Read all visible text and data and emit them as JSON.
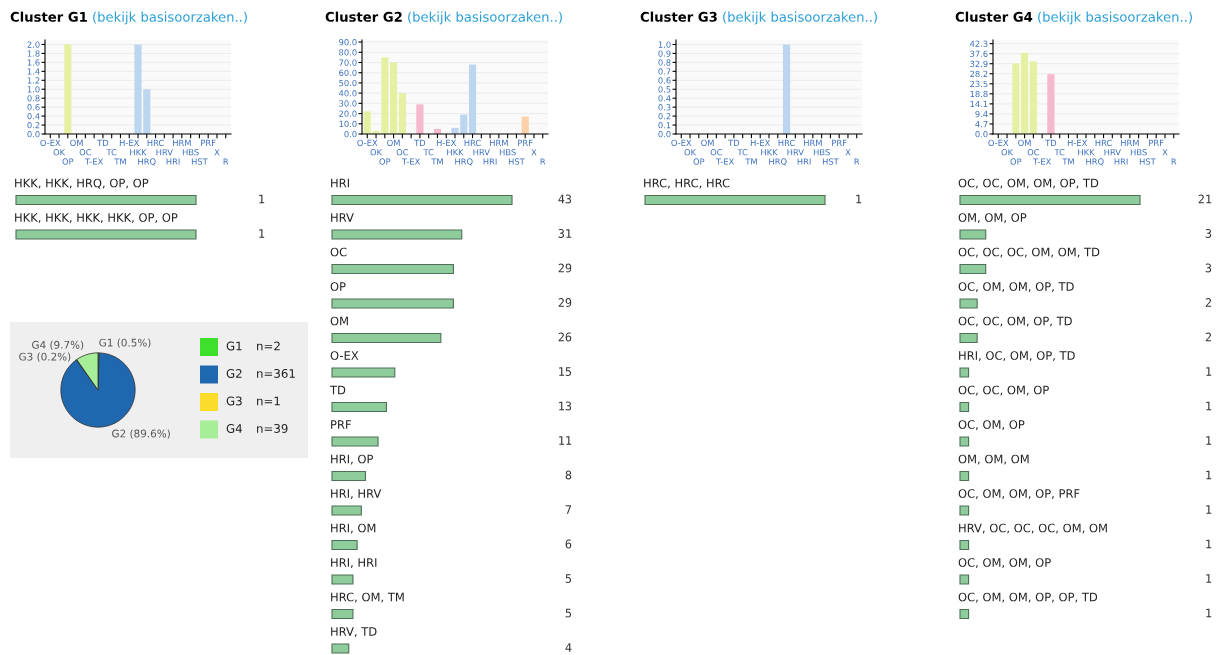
{
  "chart_data": [
    {
      "type": "bar",
      "title": "Cluster G1",
      "subtitle": "(bekijk basisoorzaken..)",
      "categories": [
        "O-EX",
        "OK",
        "OP",
        "OM",
        "OC",
        "T-EX",
        "TD",
        "TC",
        "TM",
        "H-EX",
        "HKK",
        "HRQ",
        "HRC",
        "HRV",
        "HRI",
        "HRM",
        "HBS",
        "HST",
        "PRF",
        "X",
        "R"
      ],
      "values": [
        0,
        0,
        2,
        0,
        0,
        0,
        0,
        0,
        0,
        0,
        2,
        1,
        0,
        0,
        0,
        0,
        0,
        0,
        0,
        0,
        0
      ],
      "colors": [
        "#e6f0a3",
        "#e6f0a3",
        "#e6f0a3",
        "#e6f0a3",
        "#e6f0a3",
        "#f5b8cc",
        "#f5b8cc",
        "#f5b8cc",
        "#f5b8cc",
        "#bdd6ef",
        "#bdd6ef",
        "#bdd6ef",
        "#bdd6ef",
        "#bdd6ef",
        "#bdd6ef",
        "#bdd6ef",
        "#bdd6ef",
        "#bdd6ef",
        "#fbd1a9",
        "#d9d9d9",
        "#d9d9d9"
      ],
      "ylim": [
        0,
        2.1
      ],
      "yticks": [
        {
          "value": 0,
          "label": "0.0"
        },
        {
          "value": 0.2,
          "label": "0.2"
        },
        {
          "value": 0.4,
          "label": "0.4"
        },
        {
          "value": 0.6,
          "label": "0.6"
        },
        {
          "value": 0.8,
          "label": "0.8"
        },
        {
          "value": 1.0,
          "label": "1.0"
        },
        {
          "value": 1.2,
          "label": "1.2"
        },
        {
          "value": 1.4,
          "label": "1.4"
        },
        {
          "value": 1.6,
          "label": "1.6"
        },
        {
          "value": 1.8,
          "label": "1.8"
        },
        {
          "value": 2.0,
          "label": "2.0"
        }
      ],
      "grid": "y"
    },
    {
      "type": "bar",
      "orientation": "horizontal",
      "categories": [
        "HKK, HKK, HRQ, OP, OP",
        "HKK, HKK, HKK, HKK, OP, OP"
      ],
      "values": [
        1,
        1
      ],
      "color": "#8fcc9c",
      "data_labels": true
    },
    {
      "type": "pie",
      "categories": [
        "G1",
        "G2",
        "G3",
        "G4"
      ],
      "values": [
        0.5,
        89.6,
        0.2,
        9.7
      ],
      "colors": [
        "#3ee02b",
        "#1f68b0",
        "#fbdc2a",
        "#a6ee98"
      ],
      "value_labels": [
        "G1 (0.5%)",
        "G2 (89.6%)",
        "G3 (0.2%)",
        "G4 (9.7%)"
      ],
      "annotations": [
        "n=2",
        "n=361",
        "n=1",
        "n=39"
      ],
      "legend": "right"
    },
    {
      "type": "bar",
      "title": "Cluster G2",
      "subtitle": "(bekijk basisoorzaken..)",
      "categories": [
        "O-EX",
        "OK",
        "OP",
        "OM",
        "OC",
        "T-EX",
        "TD",
        "TC",
        "TM",
        "H-EX",
        "HKK",
        "HRQ",
        "HRC",
        "HRV",
        "HRI",
        "HRM",
        "HBS",
        "HST",
        "PRF",
        "X",
        "R"
      ],
      "values": [
        22,
        3,
        75,
        70,
        40,
        0,
        29,
        0,
        5,
        0,
        6,
        19,
        68,
        0,
        0,
        null,
        0,
        0,
        17,
        null,
        null
      ],
      "colors": [
        "#e6f0a3",
        "#e6f0a3",
        "#e6f0a3",
        "#e6f0a3",
        "#e6f0a3",
        "#f5b8cc",
        "#f5b8cc",
        "#f5b8cc",
        "#f5b8cc",
        "#bdd6ef",
        "#bdd6ef",
        "#bdd6ef",
        "#bdd6ef",
        "#bdd6ef",
        "#bdd6ef",
        "#bdd6ef",
        "#bdd6ef",
        "#bdd6ef",
        "#fbd1a9",
        "#d9d9d9",
        "#d9d9d9"
      ],
      "ylim": [
        0,
        92
      ],
      "yticks": [
        {
          "value": 0,
          "label": "0.0"
        },
        {
          "value": 10,
          "label": "10.0"
        },
        {
          "value": 20,
          "label": "20.0"
        },
        {
          "value": 30,
          "label": "30.0"
        },
        {
          "value": 40,
          "label": "40.0"
        },
        {
          "value": 50,
          "label": "50.0"
        },
        {
          "value": 60,
          "label": "60.0"
        },
        {
          "value": 70,
          "label": "70.0"
        },
        {
          "value": 80,
          "label": "80.0"
        },
        {
          "value": 90,
          "label": "90.0"
        }
      ],
      "grid": "y"
    },
    {
      "type": "bar",
      "orientation": "horizontal",
      "categories": [
        "HRI",
        "HRV",
        "OC",
        "OP",
        "OM",
        "O-EX",
        "TD",
        "PRF",
        "HRI, OP",
        "HRI, HRV",
        "HRI, OM",
        "HRI, HRI",
        "HRC, OM, TM",
        "HRV, TD"
      ],
      "values": [
        43,
        31,
        29,
        29,
        26,
        15,
        13,
        11,
        8,
        7,
        6,
        5,
        5,
        4
      ],
      "color": "#8fcc9c",
      "data_labels": true
    },
    {
      "type": "bar",
      "title": "Cluster G3",
      "subtitle": "(bekijk basisoorzaken..)",
      "categories": [
        "O-EX",
        "OK",
        "OP",
        "OM",
        "OC",
        "T-EX",
        "TD",
        "TC",
        "TM",
        "H-EX",
        "HKK",
        "HRQ",
        "HRC",
        "HRV",
        "HRI",
        "HRM",
        "HBS",
        "HST",
        "PRF",
        "X",
        "R"
      ],
      "values": [
        0,
        0,
        0,
        0,
        0,
        0,
        0,
        0,
        0,
        0,
        0,
        0,
        1,
        0,
        0,
        0,
        0,
        0,
        0,
        0,
        0
      ],
      "colors": [
        "#e6f0a3",
        "#e6f0a3",
        "#e6f0a3",
        "#e6f0a3",
        "#e6f0a3",
        "#f5b8cc",
        "#f5b8cc",
        "#f5b8cc",
        "#f5b8cc",
        "#bdd6ef",
        "#bdd6ef",
        "#bdd6ef",
        "#bdd6ef",
        "#bdd6ef",
        "#bdd6ef",
        "#bdd6ef",
        "#bdd6ef",
        "#bdd6ef",
        "#fbd1a9",
        "#d9d9d9",
        "#d9d9d9"
      ],
      "ylim": [
        0,
        1.05
      ],
      "yticks": [
        {
          "value": 0,
          "label": "0.0"
        },
        {
          "value": 0.1,
          "label": "0.1"
        },
        {
          "value": 0.2,
          "label": "0.2"
        },
        {
          "value": 0.3,
          "label": "0.3"
        },
        {
          "value": 0.4,
          "label": "0.4"
        },
        {
          "value": 0.5,
          "label": "0.5"
        },
        {
          "value": 0.6,
          "label": "0.6"
        },
        {
          "value": 0.7,
          "label": "0.7"
        },
        {
          "value": 0.8,
          "label": "0.8"
        },
        {
          "value": 0.9,
          "label": "0.9"
        },
        {
          "value": 1.0,
          "label": "1.0"
        }
      ],
      "grid": "y"
    },
    {
      "type": "bar",
      "orientation": "horizontal",
      "categories": [
        "HRC, HRC, HRC"
      ],
      "values": [
        1
      ],
      "color": "#8fcc9c",
      "data_labels": true
    },
    {
      "type": "bar",
      "title": "Cluster G4",
      "subtitle": "(bekijk basisoorzaken..)",
      "categories": [
        "O-EX",
        "OK",
        "OP",
        "OM",
        "OC",
        "T-EX",
        "TD",
        "TC",
        "TM",
        "H-EX",
        "HKK",
        "HRQ",
        "HRC",
        "HRV",
        "HRI",
        "HRM",
        "HBS",
        "HST",
        "PRF",
        "X",
        "R"
      ],
      "values": [
        0,
        0,
        33,
        38,
        34,
        0,
        28,
        0,
        0,
        0,
        0,
        0,
        0,
        0,
        0,
        0,
        0,
        0,
        0,
        0,
        0
      ],
      "colors": [
        "#e6f0a3",
        "#e6f0a3",
        "#e6f0a3",
        "#e6f0a3",
        "#e6f0a3",
        "#f5b8cc",
        "#f5b8cc",
        "#f5b8cc",
        "#f5b8cc",
        "#bdd6ef",
        "#bdd6ef",
        "#bdd6ef",
        "#bdd6ef",
        "#bdd6ef",
        "#bdd6ef",
        "#bdd6ef",
        "#bdd6ef",
        "#bdd6ef",
        "#fbd1a9",
        "#d9d9d9",
        "#d9d9d9"
      ],
      "ylim": [
        0,
        44
      ],
      "yticks": [
        {
          "value": 0,
          "label": "0.0"
        },
        4.7,
        9.4,
        14.1,
        18.8,
        23.5,
        28.2,
        32.9,
        37.6,
        42.3
      ],
      "grid": "y"
    },
    {
      "type": "bar",
      "orientation": "horizontal",
      "categories": [
        "OC, OC, OM, OM, OP, TD",
        "OM, OM, OP",
        "OC, OC, OC, OM, OM, TD",
        "OC, OM, OM, OP, TD",
        "OC, OC, OM, OP, TD",
        "HRI, OC, OM, OP, TD",
        "OC, OC, OM, OP",
        "OC, OM, OP",
        "OM, OM, OM",
        "OC, OM, OM, OP, PRF",
        "HRV, OC, OC, OC, OM, OM",
        "OC, OM, OM, OP",
        "OC, OM, OM, OP, OP, TD"
      ],
      "values": [
        21,
        3,
        3,
        2,
        2,
        1,
        1,
        1,
        1,
        1,
        1,
        1,
        1
      ],
      "color": "#8fcc9c",
      "data_labels": true
    }
  ]
}
